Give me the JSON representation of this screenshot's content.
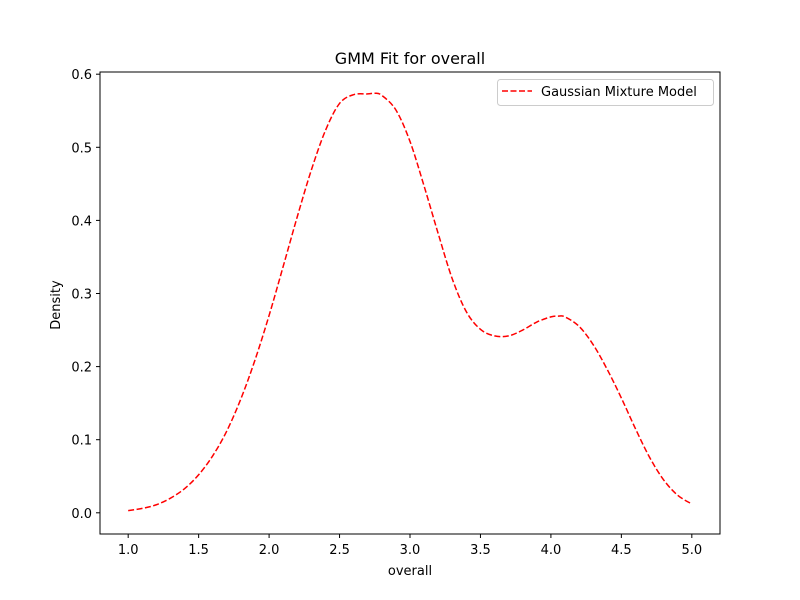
{
  "chart_data": {
    "type": "line",
    "title": "GMM Fit for overall",
    "xlabel": "overall",
    "ylabel": "Density",
    "xlim": [
      0.8,
      5.2
    ],
    "ylim": [
      -0.029,
      0.603
    ],
    "x_ticks": [
      1.0,
      1.5,
      2.0,
      2.5,
      3.0,
      3.5,
      4.0,
      4.5,
      5.0
    ],
    "x_tick_labels": [
      "1.0",
      "1.5",
      "2.0",
      "2.5",
      "3.0",
      "3.5",
      "4.0",
      "4.5",
      "5.0"
    ],
    "y_ticks": [
      0.0,
      0.1,
      0.2,
      0.3,
      0.4,
      0.5,
      0.6
    ],
    "y_tick_labels": [
      "0.0",
      "0.1",
      "0.2",
      "0.3",
      "0.4",
      "0.5",
      "0.6"
    ],
    "grid": false,
    "legend_position": "upper right",
    "series": [
      {
        "name": "Gaussian Mixture Model",
        "color": "#ff0000",
        "line_style": "dashed",
        "x": [
          1.0,
          1.1,
          1.2,
          1.3,
          1.4,
          1.5,
          1.6,
          1.7,
          1.8,
          1.9,
          2.0,
          2.1,
          2.2,
          2.3,
          2.4,
          2.5,
          2.6,
          2.7,
          2.75,
          2.8,
          2.9,
          3.0,
          3.1,
          3.2,
          3.3,
          3.4,
          3.5,
          3.6,
          3.7,
          3.8,
          3.9,
          4.0,
          4.05,
          4.1,
          4.2,
          4.3,
          4.4,
          4.5,
          4.6,
          4.7,
          4.8,
          4.9,
          5.0
        ],
        "y": [
          0.003,
          0.006,
          0.011,
          0.02,
          0.033,
          0.052,
          0.078,
          0.112,
          0.156,
          0.209,
          0.27,
          0.337,
          0.405,
          0.469,
          0.523,
          0.56,
          0.572,
          0.573,
          0.574,
          0.571,
          0.551,
          0.508,
          0.447,
          0.382,
          0.32,
          0.275,
          0.251,
          0.242,
          0.242,
          0.25,
          0.261,
          0.268,
          0.269,
          0.268,
          0.255,
          0.23,
          0.196,
          0.157,
          0.115,
          0.076,
          0.045,
          0.024,
          0.012
        ]
      }
    ]
  }
}
